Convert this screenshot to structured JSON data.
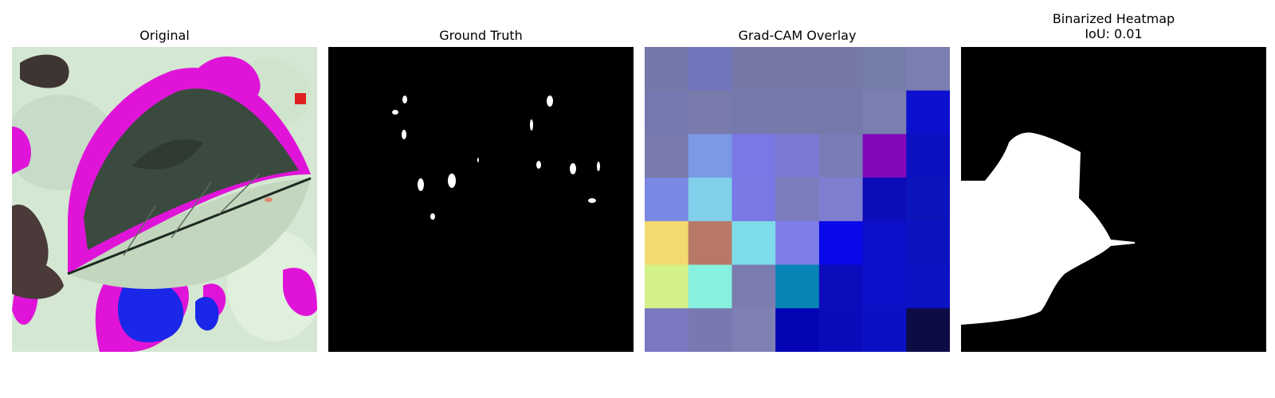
{
  "panels": [
    {
      "title": "Original"
    },
    {
      "title": "Ground Truth"
    },
    {
      "title": "Grad-CAM Overlay"
    },
    {
      "title": "Binarized Heatmap\nIoU: 0.01"
    }
  ],
  "gradcam_grid": [
    [
      "#7478a8",
      "#7276bc",
      "#7679a8",
      "#7679a8",
      "#7679a8",
      "#757da9",
      "#7a7eb0"
    ],
    [
      "#7679b0",
      "#797bad",
      "#7679ac",
      "#7679ac",
      "#7679ac",
      "#7a7fb0",
      "#0d10cf"
    ],
    [
      "#797bae",
      "#7a9ae6",
      "#7a78e6",
      "#7a7ad2",
      "#7a7cb8",
      "#8208b8",
      "#0c10c0"
    ],
    [
      "#7a88e4",
      "#7fd0e8",
      "#7a78e4",
      "#7a7cbc",
      "#7e7ed0",
      "#0c0cb8",
      "#0c14bc"
    ],
    [
      "#f4d870",
      "#b87868",
      "#7edcea",
      "#7e7ee8",
      "#0808e8",
      "#0d10c8",
      "#0d12c0"
    ],
    [
      "#d4f088",
      "#88f0de",
      "#7a7cb0",
      "#0884b4",
      "#0c0cbc",
      "#0d10c8",
      "#0d12c4"
    ],
    [
      "#7a78c0",
      "#7a78b0",
      "#7f80b4",
      "#0404b4",
      "#0a0cbc",
      "#0c10c4",
      "#0e0c44"
    ]
  ]
}
